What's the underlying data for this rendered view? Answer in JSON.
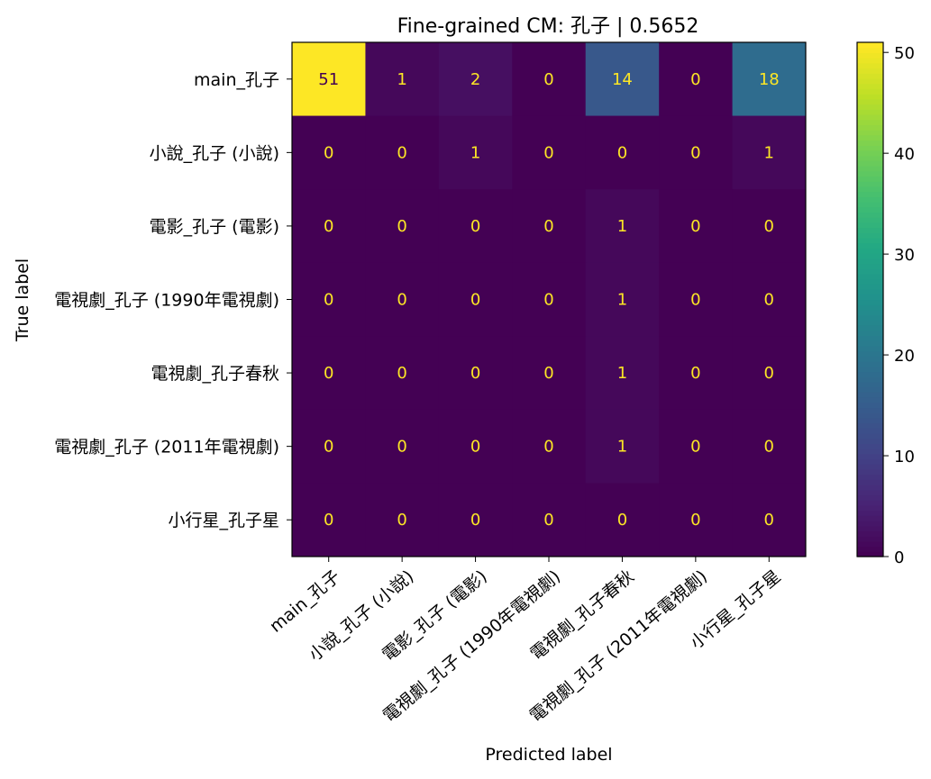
{
  "chart_data": {
    "type": "heatmap",
    "title": "Fine-grained CM: 孔子 | 0.5652",
    "xlabel": "Predicted label",
    "ylabel": "True label",
    "row_labels": [
      "main_孔子",
      "小說_孔子 (小說)",
      "電影_孔子 (電影)",
      "電視劇_孔子 (1990年電視劇)",
      "電視劇_孔子春秋",
      "電視劇_孔子 (2011年電視劇)",
      "小行星_孔子星"
    ],
    "col_labels": [
      "main_孔子",
      "小說_孔子 (小說)",
      "電影_孔子 (電影)",
      "電視劇_孔子 (1990年電視劇)",
      "電視劇_孔子春秋",
      "電視劇_孔子 (2011年電視劇)",
      "小行星_孔子星"
    ],
    "values": [
      [
        51,
        1,
        2,
        0,
        14,
        0,
        18
      ],
      [
        0,
        0,
        1,
        0,
        0,
        0,
        1
      ],
      [
        0,
        0,
        0,
        0,
        1,
        0,
        0
      ],
      [
        0,
        0,
        0,
        0,
        1,
        0,
        0
      ],
      [
        0,
        0,
        0,
        0,
        1,
        0,
        0
      ],
      [
        0,
        0,
        0,
        0,
        1,
        0,
        0
      ],
      [
        0,
        0,
        0,
        0,
        0,
        0,
        0
      ]
    ],
    "colorbar": {
      "colormap": "viridis",
      "range": [
        0,
        51
      ],
      "ticks": [
        0,
        10,
        20,
        30,
        40,
        50
      ]
    },
    "grid": false,
    "legend": "colorbar-right"
  }
}
